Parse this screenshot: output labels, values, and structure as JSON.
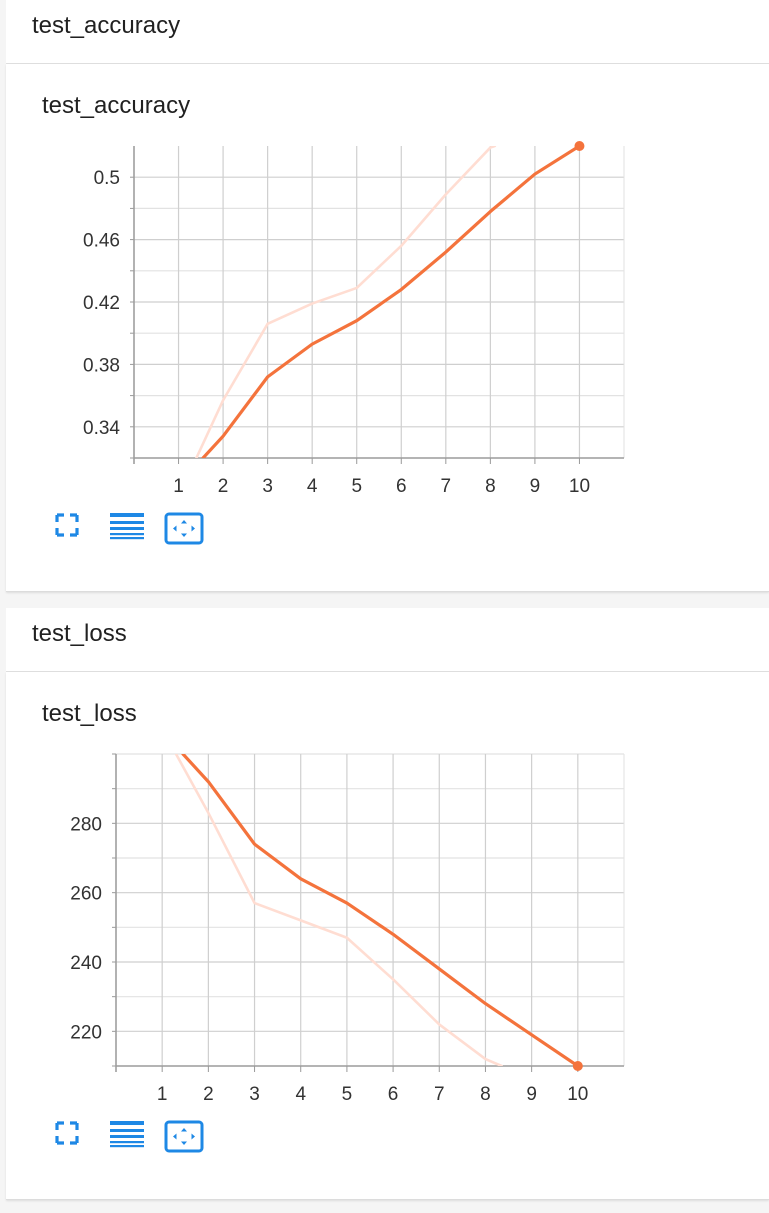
{
  "sections": [
    {
      "header": "test_accuracy",
      "card_title": "test_accuracy",
      "icons": [
        "expand-icon",
        "data-table-icon",
        "fit-domain-icon"
      ],
      "chart_data": {
        "type": "line",
        "title": "test_accuracy",
        "xlabel": "",
        "ylabel": "",
        "x_ticks": [
          1,
          2,
          3,
          4,
          5,
          6,
          7,
          8,
          9,
          10
        ],
        "y_ticks": [
          0.34,
          0.38,
          0.42,
          0.46,
          0.5
        ],
        "y_tick_labels": [
          "0.34",
          "0.38",
          "0.42",
          "0.46",
          "0.5"
        ],
        "xlim": [
          0,
          11
        ],
        "ylim": [
          0.32,
          0.52
        ],
        "grid": true,
        "series": [
          {
            "role": "raw",
            "color": "#ffddd2",
            "x": [
              1.4,
              2,
              3,
              4,
              5,
              6,
              7,
              8,
              8.1
            ],
            "y": [
              0.32,
              0.357,
              0.406,
              0.419,
              0.429,
              0.456,
              0.489,
              0.519,
              0.52
            ]
          },
          {
            "role": "smoothed",
            "color": "#f4733c",
            "x": [
              1.55,
              2,
              3,
              4,
              5,
              6,
              7,
              8,
              9,
              10
            ],
            "y": [
              0.32,
              0.334,
              0.372,
              0.393,
              0.408,
              0.428,
              0.452,
              0.478,
              0.502,
              0.52
            ]
          }
        ]
      }
    },
    {
      "header": "test_loss",
      "card_title": "test_loss",
      "icons": [
        "expand-icon",
        "data-table-icon",
        "fit-domain-icon"
      ],
      "chart_data": {
        "type": "line",
        "title": "test_loss",
        "xlabel": "",
        "ylabel": "",
        "x_ticks": [
          1,
          2,
          3,
          4,
          5,
          6,
          7,
          8,
          9,
          10
        ],
        "y_ticks": [
          220,
          240,
          260,
          280
        ],
        "y_tick_labels": [
          "220",
          "240",
          "260",
          "280"
        ],
        "xlim": [
          0,
          11
        ],
        "ylim": [
          210,
          300
        ],
        "grid": true,
        "series": [
          {
            "role": "raw",
            "color": "#ffddd2",
            "x": [
              1.3,
              2,
              3,
              4,
              5,
              6,
              7,
              8,
              8.35
            ],
            "y": [
              300,
              283,
              257,
              252,
              247,
              235,
              222,
              212,
              210
            ]
          },
          {
            "role": "smoothed",
            "color": "#f4733c",
            "x": [
              1.45,
              2,
              3,
              4,
              5,
              6,
              7,
              8,
              9,
              10
            ],
            "y": [
              300,
              292,
              274,
              264,
              257,
              248,
              238,
              228,
              219,
              210
            ]
          }
        ]
      }
    }
  ]
}
